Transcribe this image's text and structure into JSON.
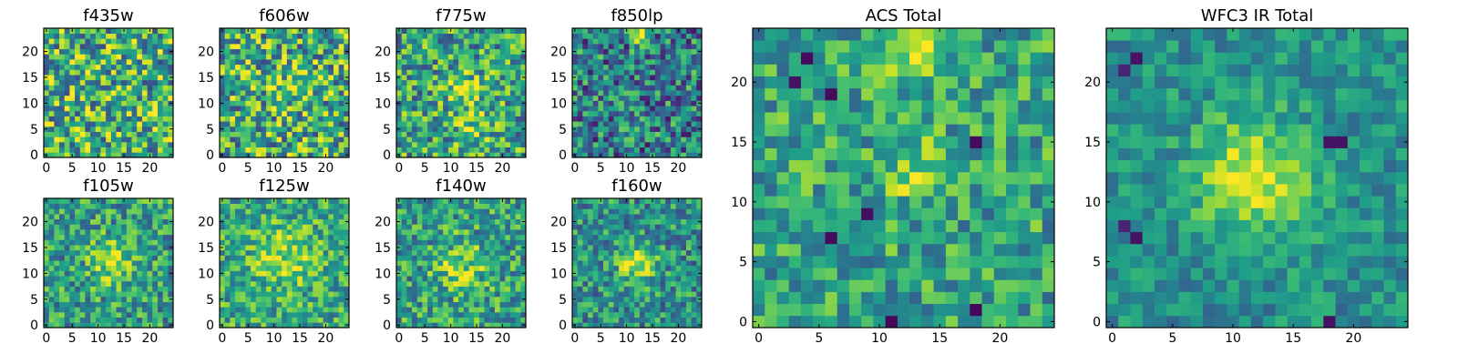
{
  "chart_data": {
    "type": "heatmap",
    "colormap": "viridis",
    "colors": {
      "background": "#ffffff",
      "axis": "#000000"
    },
    "panels": [
      {
        "id": "f435w",
        "title": "f435w",
        "grid_size": 25,
        "xlim": [
          -0.5,
          24.5
        ],
        "ylim": [
          -0.5,
          24.5
        ],
        "xticks": [
          0,
          5,
          10,
          15,
          20
        ],
        "yticks": [
          0,
          5,
          10,
          15,
          20
        ],
        "texture": {
          "seed": 11,
          "noise": 0.82,
          "base": 0.64,
          "blobs": [],
          "spots": []
        }
      },
      {
        "id": "f606w",
        "title": "f606w",
        "grid_size": 25,
        "xlim": [
          -0.5,
          24.5
        ],
        "ylim": [
          -0.5,
          24.5
        ],
        "xticks": [
          0,
          5,
          10,
          15,
          20
        ],
        "yticks": [
          0,
          5,
          10,
          15,
          20
        ],
        "texture": {
          "seed": 23,
          "noise": 0.8,
          "base": 0.62,
          "blobs": [
            {
              "x": 13,
              "y": 13,
              "r": 2.2,
              "amp": 0.2
            }
          ],
          "spots": []
        }
      },
      {
        "id": "f775w",
        "title": "f775w",
        "grid_size": 25,
        "xlim": [
          -0.5,
          24.5
        ],
        "ylim": [
          -0.5,
          24.5
        ],
        "xticks": [
          0,
          5,
          10,
          15,
          20
        ],
        "yticks": [
          0,
          5,
          10,
          15,
          20
        ],
        "texture": {
          "seed": 37,
          "noise": 0.7,
          "base": 0.58,
          "blobs": [
            {
              "x": 13,
              "y": 12,
              "r": 2.5,
              "amp": 0.28
            },
            {
              "x": 14,
              "y": 5,
              "r": 2.2,
              "amp": 0.22
            }
          ],
          "spots": []
        }
      },
      {
        "id": "f850lp",
        "title": "f850lp",
        "grid_size": 25,
        "xlim": [
          -0.5,
          24.5
        ],
        "ylim": [
          -0.5,
          24.5
        ],
        "xticks": [
          0,
          5,
          10,
          15,
          20
        ],
        "yticks": [
          0,
          5,
          10,
          15,
          20
        ],
        "texture": {
          "seed": 49,
          "noise": 0.72,
          "base": 0.42,
          "blobs": [
            {
              "x": 13,
              "y": 23.5,
              "r": 1.2,
              "amp": 0.6
            }
          ],
          "spots": []
        }
      },
      {
        "id": "f105w",
        "title": "f105w",
        "grid_size": 25,
        "xlim": [
          -0.5,
          24.5
        ],
        "ylim": [
          -0.5,
          24.5
        ],
        "xticks": [
          0,
          5,
          10,
          15,
          20
        ],
        "yticks": [
          0,
          5,
          10,
          15,
          20
        ],
        "texture": {
          "seed": 61,
          "noise": 0.58,
          "base": 0.55,
          "blobs": [
            {
              "x": 12.5,
              "y": 12.5,
              "r": 3,
              "amp": 0.35
            }
          ],
          "spots": []
        }
      },
      {
        "id": "f125w",
        "title": "f125w",
        "grid_size": 25,
        "xlim": [
          -0.5,
          24.5
        ],
        "ylim": [
          -0.5,
          24.5
        ],
        "xticks": [
          0,
          5,
          10,
          15,
          20
        ],
        "yticks": [
          0,
          5,
          10,
          15,
          20
        ],
        "texture": {
          "seed": 73,
          "noise": 0.55,
          "base": 0.6,
          "blobs": [
            {
              "x": 12,
              "y": 13,
              "r": 4,
              "amp": 0.25
            }
          ],
          "spots": []
        }
      },
      {
        "id": "f140w",
        "title": "f140w",
        "grid_size": 25,
        "xlim": [
          -0.5,
          24.5
        ],
        "ylim": [
          -0.5,
          24.5
        ],
        "xticks": [
          0,
          5,
          10,
          15,
          20
        ],
        "yticks": [
          0,
          5,
          10,
          15,
          20
        ],
        "texture": {
          "seed": 85,
          "noise": 0.6,
          "base": 0.56,
          "blobs": [
            {
              "x": 12,
              "y": 11,
              "r": 3.2,
              "amp": 0.28
            }
          ],
          "spots": []
        }
      },
      {
        "id": "f160w",
        "title": "f160w",
        "grid_size": 25,
        "xlim": [
          -0.5,
          24.5
        ],
        "ylim": [
          -0.5,
          24.5
        ],
        "xticks": [
          0,
          5,
          10,
          15,
          20
        ],
        "yticks": [
          0,
          5,
          10,
          15,
          20
        ],
        "texture": {
          "seed": 97,
          "noise": 0.55,
          "base": 0.5,
          "blobs": [
            {
              "x": 12,
              "y": 12,
              "r": 2.6,
              "amp": 0.42
            }
          ],
          "spots": []
        }
      },
      {
        "id": "acs-total",
        "title": "ACS Total",
        "grid_size": 25,
        "xlim": [
          -0.5,
          24.5
        ],
        "ylim": [
          -0.5,
          24.5
        ],
        "xticks": [
          0,
          5,
          10,
          15,
          20
        ],
        "yticks": [
          0,
          5,
          10,
          15,
          20
        ],
        "texture": {
          "seed": 109,
          "noise": 0.52,
          "base": 0.58,
          "blobs": [
            {
              "x": 13,
              "y": 23,
              "r": 2,
              "amp": 0.4
            },
            {
              "x": 13,
              "y": 12.5,
              "r": 2,
              "amp": 0.22
            }
          ],
          "spots": [
            {
              "x": 4,
              "y": 22,
              "v": 0.03
            },
            {
              "x": 3,
              "y": 20,
              "v": 0.05
            },
            {
              "x": 6,
              "y": 19,
              "v": 0.03
            },
            {
              "x": 18,
              "y": 15,
              "v": 0.03
            },
            {
              "x": 9,
              "y": 9,
              "v": 0.04
            },
            {
              "x": 6,
              "y": 7,
              "v": 0.03
            },
            {
              "x": 11,
              "y": 0,
              "v": 0.02
            },
            {
              "x": 18,
              "y": 1,
              "v": 0.02
            }
          ]
        }
      },
      {
        "id": "wfc3-ir-total",
        "title": "WFC3 IR Total",
        "grid_size": 25,
        "xlim": [
          -0.5,
          24.5
        ],
        "ylim": [
          -0.5,
          24.5
        ],
        "xticks": [
          0,
          5,
          10,
          15,
          20
        ],
        "yticks": [
          0,
          5,
          10,
          15,
          20
        ],
        "texture": {
          "seed": 121,
          "noise": 0.36,
          "base": 0.5,
          "blobs": [
            {
              "x": 12,
              "y": 12,
              "r": 3.4,
              "amp": 0.46
            }
          ],
          "spots": [
            {
              "x": 2,
              "y": 22,
              "v": 0.05
            },
            {
              "x": 1,
              "y": 21,
              "v": 0.1
            },
            {
              "x": 18,
              "y": 15,
              "v": 0.05
            },
            {
              "x": 19,
              "y": 15,
              "v": 0.05
            },
            {
              "x": 2,
              "y": 7,
              "v": 0.05
            },
            {
              "x": 1,
              "y": 8,
              "v": 0.1
            },
            {
              "x": 18,
              "y": 0,
              "v": 0.05
            }
          ]
        }
      }
    ]
  }
}
